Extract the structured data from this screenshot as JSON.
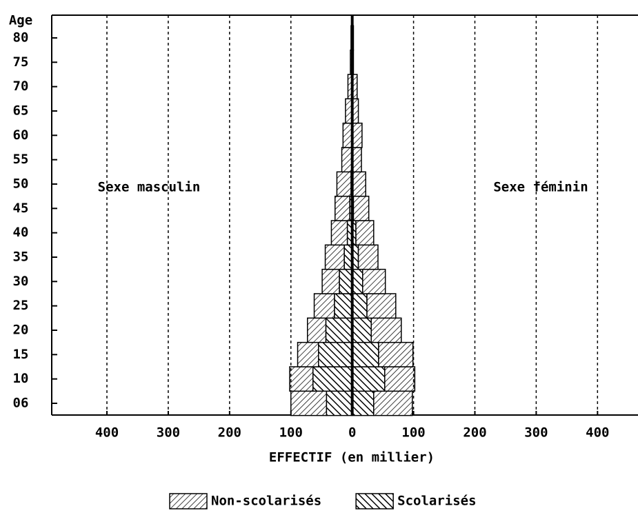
{
  "chart_data": {
    "type": "pyramid",
    "y_label": "Age",
    "x_label": "EFFECTIF (en millier)",
    "annotations": [
      "Sexe masculin",
      "Sexe féminin"
    ],
    "categories": [
      "06",
      "10",
      "15",
      "20",
      "25",
      "30",
      "35",
      "40",
      "45",
      "50",
      "55",
      "60",
      "65",
      "70",
      "75",
      "80"
    ],
    "series": [
      {
        "name": "Scolarisés",
        "hatch": "back",
        "male": [
          -42,
          -64,
          -55,
          -43,
          -29,
          -21,
          -13,
          -8,
          -4,
          -2,
          -1,
          -1,
          0,
          0,
          0,
          0
        ],
        "female": [
          35,
          53,
          43,
          31,
          24,
          17,
          10,
          6,
          2,
          1,
          1,
          1,
          0,
          0,
          0,
          0
        ]
      },
      {
        "name": "Non-scolarisés",
        "hatch": "forward",
        "male": [
          -58,
          -38,
          -34,
          -30,
          -33,
          -28,
          -31,
          -26,
          -24,
          -23,
          -16,
          -14,
          -11,
          -7,
          -3,
          -2
        ],
        "female": [
          63,
          49,
          56,
          49,
          47,
          37,
          32,
          29,
          25,
          21,
          14,
          15,
          10,
          8,
          2,
          2
        ]
      }
    ],
    "legend_order": [
      1,
      0
    ],
    "xlim": [
      -490,
      466
    ],
    "xticks": [
      {
        "value": -400,
        "label": "400"
      },
      {
        "value": -300,
        "label": "300"
      },
      {
        "value": -200,
        "label": "200"
      },
      {
        "value": -100,
        "label": "100"
      },
      0,
      100,
      200,
      300,
      400
    ],
    "grid": true
  }
}
